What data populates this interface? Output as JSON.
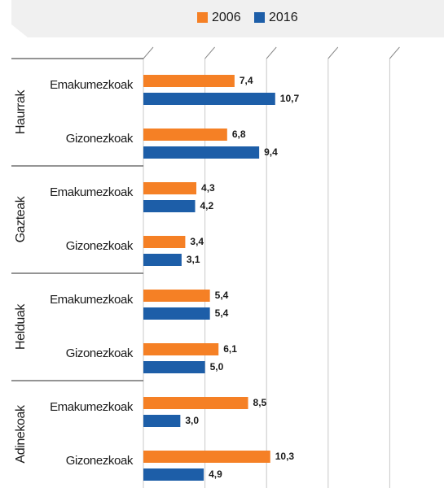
{
  "chart_data": {
    "type": "bar",
    "orientation": "horizontal",
    "groups": [
      "Haurrak",
      "Gazteak",
      "Helduak",
      "Adinekoak"
    ],
    "categories": [
      "Emakumezkoak",
      "Gizonezkoak",
      "Emakumezkoak",
      "Gizonezkoak",
      "Emakumezkoak",
      "Gizonezkoak",
      "Emakumezkoak",
      "Gizonezkoak"
    ],
    "series": [
      {
        "name": "2006",
        "color": "#f58025",
        "values": [
          7.4,
          6.8,
          4.3,
          3.4,
          5.4,
          6.1,
          8.5,
          10.3
        ],
        "value_labels": [
          "7,4",
          "6,8",
          "4,3",
          "3,4",
          "5,4",
          "6,1",
          "8,5",
          "10,3"
        ]
      },
      {
        "name": "2016",
        "color": "#1d5ea8",
        "values": [
          10.7,
          9.4,
          4.2,
          3.1,
          5.4,
          5.0,
          3.0,
          4.9
        ],
        "value_labels": [
          "10,7",
          "9,4",
          "4,2",
          "3,1",
          "5,4",
          "5,0",
          "3,0",
          "4,9"
        ]
      }
    ],
    "xlim": [
      0,
      25
    ],
    "xticks": [
      0,
      5,
      10,
      15,
      20,
      25
    ],
    "grid": true
  }
}
